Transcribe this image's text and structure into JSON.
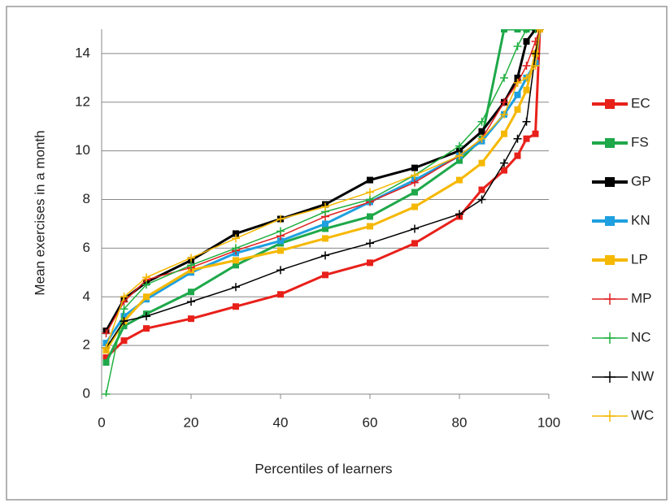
{
  "chart_data": {
    "type": "line",
    "xlabel": "Percentiles of learners",
    "ylabel": "Mean exercises in a month",
    "x": [
      1,
      5,
      10,
      20,
      30,
      40,
      50,
      60,
      70,
      80,
      85,
      90,
      93,
      95,
      97,
      98
    ],
    "series": [
      {
        "name": "EC",
        "color": "#e8201a",
        "marker": "square",
        "values": [
          1.5,
          2.2,
          2.7,
          3.1,
          3.6,
          4.1,
          4.9,
          5.4,
          6.2,
          7.3,
          8.4,
          9.2,
          9.8,
          10.5,
          10.7,
          15
        ]
      },
      {
        "name": "FS",
        "color": "#1ea84a",
        "marker": "square",
        "values": [
          1.3,
          2.8,
          3.3,
          4.2,
          5.3,
          6.2,
          6.8,
          7.3,
          8.3,
          9.6,
          10.5,
          15,
          15,
          15,
          15,
          15
        ]
      },
      {
        "name": "GP",
        "color": "#000000",
        "marker": "square",
        "values": [
          2.6,
          3.9,
          4.6,
          5.5,
          6.6,
          7.2,
          7.8,
          8.8,
          9.3,
          10.0,
          10.8,
          12.0,
          13.0,
          14.5,
          15,
          15
        ]
      },
      {
        "name": "KN",
        "color": "#1ea0e0",
        "marker": "square",
        "values": [
          2.1,
          3.2,
          3.9,
          5.0,
          5.8,
          6.3,
          7.0,
          7.9,
          8.8,
          9.8,
          10.4,
          11.5,
          12.3,
          13.0,
          13.6,
          15
        ]
      },
      {
        "name": "LP",
        "color": "#f5b800",
        "marker": "square",
        "values": [
          1.8,
          3.0,
          4.0,
          5.1,
          5.5,
          5.9,
          6.4,
          6.9,
          7.7,
          8.8,
          9.5,
          10.7,
          11.7,
          12.5,
          14,
          15
        ]
      },
      {
        "name": "MP",
        "color": "#e02020",
        "marker": "plus",
        "values": [
          2.5,
          3.8,
          4.7,
          5.2,
          5.9,
          6.5,
          7.3,
          7.9,
          8.7,
          9.8,
          10.5,
          12.0,
          12.8,
          13.5,
          14.5,
          15
        ]
      },
      {
        "name": "NC",
        "color": "#20b040",
        "marker": "plus",
        "values": [
          0,
          3.5,
          4.5,
          5.3,
          6.0,
          6.7,
          7.5,
          8.0,
          9.0,
          10.2,
          11.2,
          13.0,
          14.3,
          15,
          15,
          15
        ]
      },
      {
        "name": "NW",
        "color": "#000000",
        "marker": "plus",
        "values": [
          1.9,
          3.0,
          3.2,
          3.8,
          4.4,
          5.1,
          5.7,
          6.2,
          6.8,
          7.4,
          8.0,
          9.5,
          10.5,
          11.2,
          14,
          15
        ]
      },
      {
        "name": "WC",
        "color": "#f5b800",
        "marker": "plus",
        "values": [
          1.9,
          4.0,
          4.8,
          5.6,
          6.4,
          7.2,
          7.7,
          8.3,
          9.0,
          9.8,
          10.5,
          11.5,
          12.8,
          13.0,
          13.5,
          15
        ]
      }
    ],
    "xlim": [
      0,
      100
    ],
    "xticks": [
      0,
      20,
      40,
      60,
      80,
      100
    ],
    "ylim": [
      0,
      15
    ],
    "yticks": [
      0,
      2,
      4,
      6,
      8,
      10,
      12,
      14
    ],
    "grid": true,
    "legend": "right"
  }
}
